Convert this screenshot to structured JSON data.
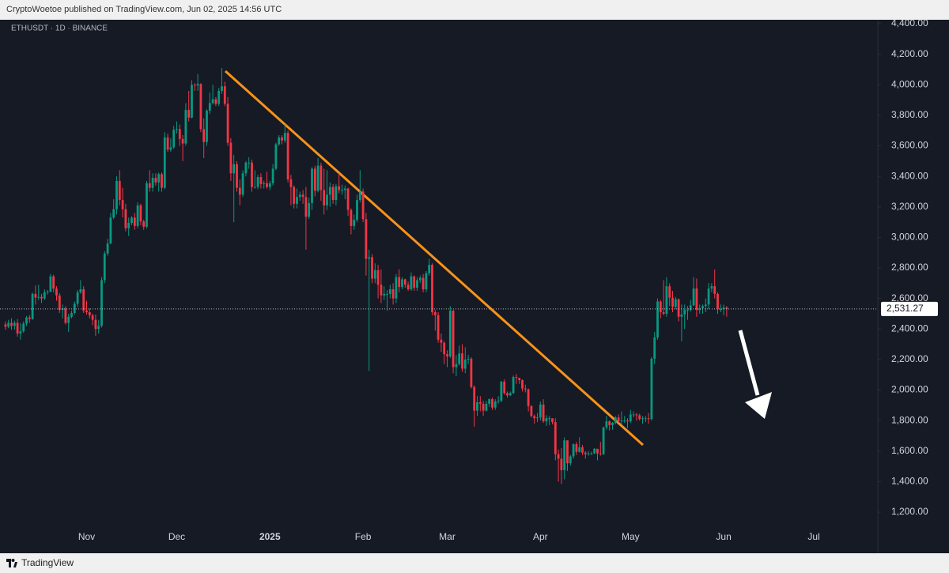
{
  "header": {
    "published": "CryptoWoetoe published on TradingView.com, Jun 02, 2025 14:56 UTC"
  },
  "footer": {
    "brand": "TradingView"
  },
  "chart_data": {
    "type": "candlestick",
    "symbol": "ETHUSDT · 1D · BINANCE",
    "up_color": "#089981",
    "down_color": "#f23645",
    "categories": [
      null,
      null,
      null,
      null,
      null,
      null,
      null,
      null,
      null,
      null,
      null,
      null,
      null,
      null,
      null,
      null,
      null,
      null,
      null,
      null,
      null,
      null,
      null,
      null,
      null,
      null,
      null,
      "Nov",
      null,
      null,
      null,
      null,
      null,
      null,
      null,
      null,
      null,
      null,
      null,
      null,
      null,
      null,
      null,
      null,
      null,
      null,
      null,
      null,
      null,
      null,
      null,
      null,
      null,
      null,
      null,
      null,
      null,
      "Dec",
      null,
      null,
      null,
      null,
      null,
      null,
      null,
      null,
      null,
      null,
      null,
      null,
      null,
      null,
      null,
      null,
      null,
      null,
      null,
      null,
      null,
      null,
      null,
      null,
      null,
      null,
      null,
      null,
      null,
      null,
      "2025",
      null,
      null,
      null,
      null,
      null,
      null,
      null,
      null,
      null,
      null,
      null,
      null,
      null,
      null,
      null,
      null,
      null,
      null,
      null,
      null,
      null,
      null,
      null,
      null,
      null,
      null,
      null,
      null,
      null,
      null,
      "Feb",
      null,
      null,
      null,
      null,
      null,
      null,
      null,
      null,
      null,
      null,
      null,
      null,
      null,
      null,
      null,
      null,
      null,
      null,
      null,
      null,
      null,
      null,
      null,
      null,
      null,
      null,
      null,
      "Mar",
      null,
      null,
      null,
      null,
      null,
      null,
      null,
      null,
      null,
      null,
      null,
      null,
      null,
      null,
      null,
      null,
      null,
      null,
      null,
      null,
      null,
      null,
      null,
      null,
      null,
      null,
      null,
      null,
      null,
      null,
      "Apr",
      null,
      null,
      null,
      null,
      null,
      null,
      null,
      null,
      null,
      null,
      null,
      null,
      null,
      null,
      null,
      null,
      null,
      null,
      null,
      null,
      null,
      null,
      null,
      null,
      null,
      null,
      null,
      null,
      null,
      "May",
      null,
      null,
      null,
      null,
      null,
      null,
      null,
      null,
      null,
      null,
      null,
      null,
      null,
      null,
      null,
      null,
      null,
      null,
      null,
      null,
      null,
      null,
      null,
      null,
      null,
      null,
      null,
      null,
      null,
      null,
      "Jun",
      null,
      null,
      null,
      null,
      null,
      null,
      null,
      null,
      null,
      null,
      null,
      null,
      null,
      null,
      null,
      null,
      null,
      null,
      null,
      null,
      null,
      null,
      null,
      null,
      null,
      null,
      null,
      null,
      null,
      "Jul"
    ],
    "open": [
      2430,
      2415,
      2440,
      2420,
      2440,
      2370,
      2385,
      2435,
      2475,
      2465,
      2630,
      2605,
      2610,
      2600,
      2640,
      2645,
      2745,
      2665,
      2620,
      2525,
      2535,
      2440,
      2480,
      2505,
      2565,
      2640,
      2660,
      2520,
      2510,
      2490,
      2460,
      2400,
      2420,
      2720,
      2895,
      2960,
      3130,
      3185,
      3370,
      3245,
      3185,
      3060,
      3095,
      3130,
      3075,
      3210,
      3105,
      3070,
      3355,
      3325,
      3390,
      3360,
      3415,
      3325,
      3655,
      3575,
      3590,
      3705,
      3710,
      3645,
      3615,
      3835,
      3785,
      4000,
      3995,
      4005,
      3710,
      3625,
      3830,
      3880,
      3905,
      3875,
      3960,
      3990,
      3875,
      3620,
      3420,
      3480,
      3325,
      3280,
      3420,
      3490,
      3490,
      3330,
      3330,
      3395,
      3350,
      3355,
      3330,
      3355,
      3450,
      3610,
      3655,
      3635,
      3685,
      3380,
      3330,
      3220,
      3265,
      3280,
      3265,
      3135,
      3225,
      3450,
      3305,
      3470,
      3310,
      3210,
      3280,
      3330,
      3245,
      3335,
      3310,
      3310,
      3320,
      3180,
      3075,
      3115,
      3245,
      3300,
      3120,
      2860,
      2870,
      2730,
      2785,
      2690,
      2620,
      2630,
      2630,
      2660,
      2600,
      2740,
      2675,
      2725,
      2690,
      2660,
      2745,
      2670,
      2720,
      2735,
      2660,
      2765,
      2820,
      2510,
      2490,
      2330,
      2310,
      2235,
      2220,
      2520,
      2150,
      2170,
      2240,
      2140,
      2200,
      2205,
      2020,
      1865,
      1920,
      1910,
      1865,
      1910,
      1940,
      1885,
      1925,
      1930,
      2055,
      1980,
      1965,
      1980,
      2085,
      2080,
      2065,
      2010,
      2005,
      1895,
      1830,
      1815,
      1820,
      1905,
      1795,
      1815,
      1815,
      1790,
      1580,
      1550,
      1475,
      1670,
      1520,
      1565,
      1645,
      1595,
      1625,
      1590,
      1580,
      1585,
      1585,
      1615,
      1585,
      1580,
      1755,
      1795,
      1770,
      1785,
      1820,
      1795,
      1800,
      1800,
      1795,
      1840,
      1840,
      1835,
      1810,
      1815,
      1815,
      1810,
      2205,
      2345,
      2580,
      2510,
      2500,
      2680,
      2605,
      2545,
      2595,
      2480,
      2495,
      2525,
      2525,
      2555,
      2665,
      2525,
      2535,
      2550,
      2560,
      2665,
      2680,
      2630,
      2530,
      2530,
      2540,
      null,
      null,
      null,
      null,
      null,
      null,
      null,
      null,
      null,
      null,
      null,
      null,
      null,
      null,
      null,
      null,
      null,
      null,
      null,
      null,
      null,
      null,
      null,
      null,
      null,
      null,
      null,
      null,
      null
    ],
    "high": [
      2450,
      2460,
      2470,
      2455,
      2465,
      2440,
      2450,
      2485,
      2490,
      2640,
      2685,
      2690,
      2630,
      2660,
      2655,
      2760,
      2755,
      2680,
      2635,
      2560,
      2550,
      2500,
      2520,
      2580,
      2655,
      2720,
      2680,
      2585,
      2535,
      2500,
      2495,
      2460,
      2740,
      2910,
      2990,
      3160,
      3250,
      3400,
      3440,
      3325,
      3220,
      3130,
      3140,
      3160,
      3230,
      3220,
      3115,
      3370,
      3440,
      3420,
      3420,
      3425,
      3425,
      3690,
      3680,
      3650,
      3730,
      3760,
      3740,
      3670,
      3880,
      3960,
      4030,
      4010,
      4070,
      4010,
      3780,
      3840,
      3950,
      4000,
      3920,
      3980,
      4110,
      4020,
      3920,
      3650,
      3540,
      3500,
      3380,
      3440,
      3500,
      3525,
      3510,
      3440,
      3410,
      3420,
      3370,
      3430,
      3370,
      3480,
      3620,
      3670,
      3670,
      3740,
      3700,
      3410,
      3340,
      3320,
      3300,
      3310,
      3330,
      3260,
      3460,
      3470,
      3520,
      3490,
      3450,
      3440,
      3360,
      3350,
      3350,
      3420,
      3345,
      3340,
      3325,
      3190,
      3150,
      3280,
      3440,
      3320,
      3160,
      2920,
      2890,
      2830,
      2820,
      2790,
      2680,
      2655,
      2690,
      2700,
      2760,
      2790,
      2740,
      2730,
      2710,
      2770,
      2750,
      2740,
      2750,
      2760,
      2780,
      2860,
      2830,
      2525,
      2510,
      2370,
      2320,
      2260,
      2550,
      2525,
      2230,
      2290,
      2300,
      2280,
      2230,
      2215,
      2030,
      1960,
      1960,
      1930,
      1930,
      1945,
      1950,
      1940,
      1960,
      2060,
      2070,
      1990,
      1990,
      2095,
      2105,
      2080,
      2070,
      2035,
      2010,
      1900,
      1840,
      1850,
      1925,
      1940,
      1835,
      1830,
      1815,
      1815,
      1610,
      1620,
      1690,
      1670,
      1575,
      1650,
      1660,
      1690,
      1640,
      1600,
      1600,
      1595,
      1620,
      1615,
      1660,
      1760,
      1830,
      1800,
      1790,
      1830,
      1840,
      1860,
      1830,
      1815,
      1870,
      1860,
      1850,
      1845,
      1830,
      1830,
      1850,
      2215,
      2380,
      2600,
      2590,
      2720,
      2740,
      2700,
      2650,
      2610,
      2600,
      2560,
      2560,
      2550,
      2590,
      2740,
      2730,
      2560,
      2560,
      2600,
      2700,
      2700,
      2790,
      2640,
      2560,
      2560,
      2550,
      null,
      null,
      null,
      null,
      null,
      null,
      null,
      null,
      null,
      null,
      null,
      null,
      null,
      null,
      null,
      null,
      null,
      null,
      null,
      null,
      null,
      null,
      null,
      null,
      null,
      null,
      null,
      null,
      null
    ],
    "low": [
      2395,
      2405,
      2395,
      2395,
      2350,
      2330,
      2375,
      2420,
      2440,
      2460,
      2560,
      2590,
      2570,
      2590,
      2625,
      2640,
      2640,
      2585,
      2505,
      2470,
      2430,
      2380,
      2470,
      2495,
      2545,
      2630,
      2505,
      2495,
      2470,
      2425,
      2355,
      2370,
      2410,
      2700,
      2880,
      2955,
      3120,
      3150,
      3210,
      3130,
      3040,
      3010,
      3080,
      3050,
      3060,
      3080,
      3050,
      3060,
      3300,
      3300,
      3340,
      3300,
      3300,
      3315,
      3560,
      3560,
      3580,
      3680,
      3600,
      3500,
      3600,
      3760,
      3780,
      3960,
      3960,
      3690,
      3520,
      3600,
      3810,
      3870,
      3860,
      3860,
      3940,
      3860,
      3600,
      3370,
      3100,
      3300,
      3210,
      3265,
      3400,
      3450,
      3300,
      3320,
      3315,
      3320,
      3320,
      3320,
      3310,
      3340,
      3440,
      3600,
      3610,
      3620,
      3360,
      3210,
      3190,
      3190,
      3240,
      3220,
      2920,
      3120,
      3180,
      3270,
      3295,
      3240,
      3150,
      3180,
      3200,
      3220,
      3210,
      3290,
      3280,
      3250,
      3140,
      3020,
      3050,
      3100,
      3230,
      3100,
      2750,
      2125,
      2700,
      2700,
      2600,
      2570,
      2590,
      2520,
      2600,
      2560,
      2570,
      2640,
      2660,
      2670,
      2650,
      2650,
      2650,
      2650,
      2700,
      2640,
      2640,
      2750,
      2490,
      2390,
      2310,
      2250,
      2170,
      2150,
      2210,
      2110,
      2090,
      2160,
      2120,
      2110,
      2170,
      2010,
      1760,
      1830,
      1860,
      1830,
      1860,
      1890,
      1870,
      1870,
      1910,
      1920,
      1970,
      1950,
      1960,
      1975,
      2040,
      2040,
      1990,
      1985,
      1860,
      1820,
      1780,
      1790,
      1800,
      1785,
      1765,
      1770,
      1775,
      1540,
      1400,
      1385,
      1415,
      1470,
      1505,
      1550,
      1575,
      1590,
      1575,
      1550,
      1570,
      1575,
      1580,
      1540,
      1570,
      1575,
      1740,
      1735,
      1740,
      1775,
      1785,
      1775,
      1785,
      1750,
      1785,
      1820,
      1800,
      1800,
      1780,
      1790,
      1780,
      1800,
      2170,
      2330,
      2470,
      2490,
      2480,
      2550,
      2510,
      2530,
      2450,
      2320,
      2400,
      2460,
      2515,
      2550,
      2480,
      2500,
      2500,
      2510,
      2530,
      2640,
      2600,
      2500,
      2510,
      2490,
      2480,
      null,
      null,
      null,
      null,
      null,
      null,
      null,
      null,
      null,
      null,
      null,
      null,
      null,
      null,
      null,
      null,
      null,
      null,
      null,
      null,
      null,
      null,
      null,
      null,
      null,
      null,
      null,
      null,
      null
    ],
    "close": [
      2415,
      2440,
      2420,
      2440,
      2370,
      2385,
      2435,
      2475,
      2465,
      2630,
      2605,
      2610,
      2600,
      2640,
      2645,
      2745,
      2665,
      2620,
      2525,
      2535,
      2440,
      2480,
      2505,
      2565,
      2640,
      2660,
      2520,
      2510,
      2490,
      2460,
      2400,
      2420,
      2720,
      2895,
      2960,
      3130,
      3185,
      3370,
      3245,
      3185,
      3060,
      3095,
      3130,
      3075,
      3210,
      3105,
      3070,
      3355,
      3325,
      3390,
      3360,
      3415,
      3325,
      3655,
      3575,
      3590,
      3705,
      3710,
      3645,
      3615,
      3835,
      3785,
      4000,
      3995,
      4005,
      3710,
      3625,
      3830,
      3880,
      3905,
      3875,
      3960,
      3990,
      3875,
      3620,
      3420,
      3480,
      3325,
      3280,
      3420,
      3490,
      3490,
      3330,
      3330,
      3395,
      3350,
      3355,
      3330,
      3355,
      3450,
      3610,
      3655,
      3635,
      3685,
      3380,
      3330,
      3220,
      3265,
      3280,
      3265,
      3135,
      3225,
      3450,
      3305,
      3470,
      3310,
      3210,
      3280,
      3330,
      3245,
      3335,
      3310,
      3310,
      3320,
      3180,
      3075,
      3115,
      3245,
      3300,
      3120,
      2860,
      2870,
      2730,
      2785,
      2690,
      2620,
      2630,
      2630,
      2660,
      2600,
      2740,
      2675,
      2725,
      2690,
      2660,
      2745,
      2670,
      2720,
      2735,
      2660,
      2765,
      2820,
      2510,
      2490,
      2330,
      2310,
      2235,
      2220,
      2520,
      2150,
      2170,
      2240,
      2140,
      2200,
      2205,
      2020,
      1865,
      1920,
      1910,
      1865,
      1910,
      1940,
      1885,
      1925,
      1930,
      2055,
      1980,
      1965,
      1980,
      2085,
      2080,
      2065,
      2010,
      2005,
      1895,
      1830,
      1815,
      1820,
      1905,
      1795,
      1815,
      1815,
      1790,
      1580,
      1550,
      1475,
      1670,
      1520,
      1565,
      1645,
      1595,
      1625,
      1590,
      1580,
      1585,
      1585,
      1615,
      1585,
      1580,
      1755,
      1795,
      1770,
      1785,
      1820,
      1795,
      1800,
      1800,
      1795,
      1840,
      1840,
      1835,
      1810,
      1815,
      1815,
      1810,
      2205,
      2345,
      2580,
      2510,
      2500,
      2680,
      2605,
      2545,
      2595,
      2480,
      2495,
      2525,
      2525,
      2555,
      2665,
      2525,
      2535,
      2550,
      2560,
      2665,
      2680,
      2630,
      2530,
      2530,
      2540,
      2531.27,
      null,
      null,
      null,
      null,
      null,
      null,
      null,
      null,
      null,
      null,
      null,
      null,
      null,
      null,
      null,
      null,
      null,
      null,
      null,
      null,
      null,
      null,
      null,
      null,
      null,
      null,
      null,
      null,
      null
    ],
    "last_price": {
      "value": 2531.27,
      "label": "2,531.27"
    },
    "ylim": [
      1200,
      4400
    ],
    "yticks": [
      {
        "value": 1200,
        "label": "1,200.00"
      },
      {
        "value": 1400,
        "label": "1,400.00"
      },
      {
        "value": 1600,
        "label": "1,600.00"
      },
      {
        "value": 1800,
        "label": "1,800.00"
      },
      {
        "value": 2000,
        "label": "2,000.00"
      },
      {
        "value": 2200,
        "label": "2,200.00"
      },
      {
        "value": 2400,
        "label": "2,400.00"
      },
      {
        "value": 2600,
        "label": "2,600.00"
      },
      {
        "value": 2800,
        "label": "2,800.00"
      },
      {
        "value": 3000,
        "label": "3,000.00"
      },
      {
        "value": 3200,
        "label": "3,200.00"
      },
      {
        "value": 3400,
        "label": "3,400.00"
      },
      {
        "value": 3600,
        "label": "3,600.00"
      },
      {
        "value": 3800,
        "label": "3,800.00"
      },
      {
        "value": 4000,
        "label": "4,000.00"
      },
      {
        "value": 4200,
        "label": "4,200.00"
      },
      {
        "value": 4400,
        "label": "4,400.00"
      }
    ],
    "grid": false
  }
}
